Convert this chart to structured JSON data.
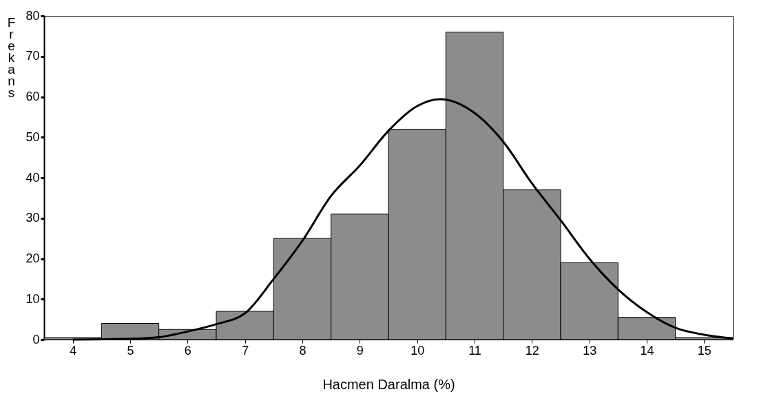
{
  "chart_data": {
    "type": "histogram",
    "xlabel": "Hacmen Daralma (%)",
    "ylabel": "Frekans",
    "bins": [
      3.5,
      4.5,
      5.5,
      6.5,
      7.5,
      8.5,
      9.5,
      10.5,
      11.5,
      12.5,
      13.5,
      14.5,
      15.5
    ],
    "values": [
      0.5,
      4,
      2.5,
      7,
      25,
      31,
      52,
      76,
      37,
      19,
      5.5,
      0.5
    ],
    "color": "#8c8c8c",
    "series": [
      {
        "type": "line",
        "color": "#000000",
        "x": [
          4,
          5,
          5.5,
          6,
          6.5,
          7,
          7.5,
          8,
          8.5,
          9,
          9.5,
          10,
          10.4,
          11,
          11.5,
          12,
          12.5,
          13,
          13.5,
          14,
          14.5,
          15,
          15.5
        ],
        "values": [
          0,
          0.2,
          0.6,
          2,
          3.8,
          6.5,
          15,
          24.4,
          35.5,
          43,
          51.6,
          57.7,
          59.4,
          56,
          48.9,
          38.6,
          29.5,
          20,
          12.4,
          6.8,
          2.9,
          1.2,
          0.3
        ]
      }
    ],
    "xlim": [
      3.5,
      15.5
    ],
    "ylim": [
      0,
      80
    ],
    "xticks": [
      4,
      5,
      6,
      7,
      8,
      9,
      10,
      11,
      12,
      13,
      14,
      15
    ],
    "yticks": [
      0,
      10,
      20,
      30,
      40,
      50,
      60,
      70,
      80
    ],
    "grid": false
  }
}
